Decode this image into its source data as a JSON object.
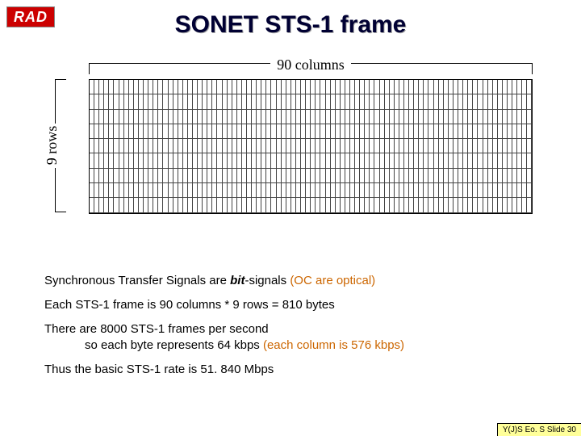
{
  "logo": {
    "text": "RAD",
    "bg": "#cc0000",
    "fg": "#ffffff"
  },
  "title": "SONET STS-1 frame",
  "diagram": {
    "columns_label": "90 columns",
    "rows_label": "9 rows",
    "grid": {
      "cols": 90,
      "rows": 9,
      "cell_w": 6.1,
      "cell_h": 18.3,
      "border_color": "#000000"
    }
  },
  "lines": {
    "l1_pre": "Synchronous Transfer Signals are ",
    "l1_em": "bit",
    "l1_post": "-signals ",
    "l1_paren": "(OC are optical)",
    "l2": "Each STS-1 frame is 90 columns * 9 rows = 810 bytes",
    "l3a": "There are 8000 STS-1 frames per second",
    "l3b_pre": "so each byte represents 64 kbps ",
    "l3b_paren": "(each column is 576 kbps)",
    "l4": "Thus the basic STS-1 rate is 51. 840 Mbps"
  },
  "footer": "Y(J)S Eo. S  Slide 30",
  "colors": {
    "paren": "#cc6600",
    "title": "#000033",
    "footer_bg": "#ffff99"
  }
}
